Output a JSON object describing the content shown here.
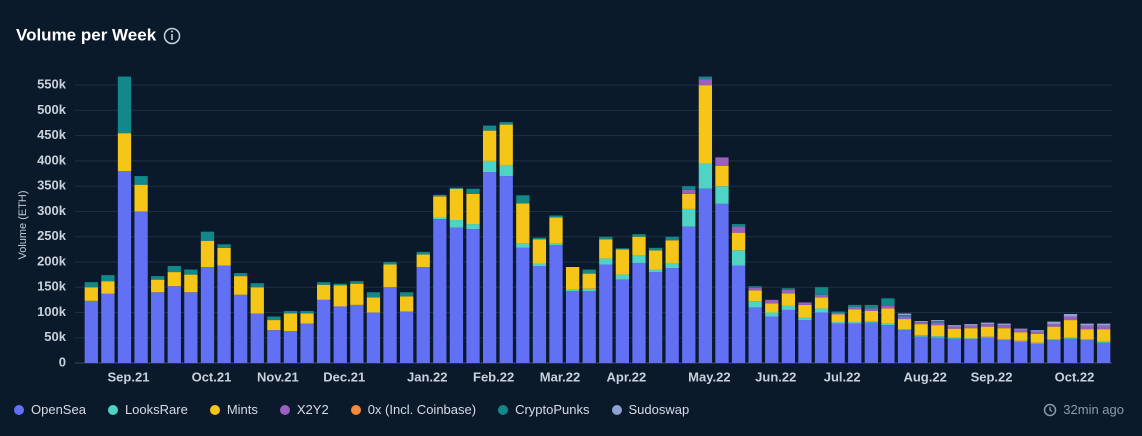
{
  "chart_data": {
    "type": "stacked-bar",
    "title": "Volume per Week",
    "y_label": "Volume (ETH)",
    "updated": "32min ago",
    "categories": [
      null,
      null,
      "Sep.21",
      null,
      null,
      null,
      null,
      "Oct.21",
      null,
      null,
      null,
      "Nov.21",
      null,
      null,
      null,
      "Dec.21",
      null,
      null,
      null,
      null,
      "Jan.22",
      null,
      null,
      null,
      "Feb.22",
      null,
      null,
      null,
      "Mar.22",
      null,
      null,
      null,
      "Apr.22",
      null,
      null,
      null,
      null,
      "May.22",
      null,
      null,
      null,
      "Jun.22",
      null,
      null,
      null,
      "Jul.22",
      null,
      null,
      null,
      null,
      "Aug.22",
      null,
      null,
      null,
      "Sep.22",
      null,
      null,
      null,
      null,
      "Oct.22",
      null,
      null
    ],
    "series": [
      {
        "name": "OpenSea",
        "color": "#6270f4",
        "values": [
          123000,
          137000,
          380000,
          300000,
          140000,
          152000,
          140000,
          190000,
          193000,
          135000,
          98000,
          65000,
          63000,
          78000,
          125000,
          112000,
          115000,
          100000,
          150000,
          102000,
          190000,
          285000,
          268000,
          265000,
          378000,
          370000,
          228000,
          192000,
          233000,
          142000,
          142000,
          195000,
          165000,
          198000,
          180000,
          188000,
          270000,
          345000,
          315000,
          193000,
          110000,
          92000,
          105000,
          85000,
          100000,
          78000,
          78000,
          80000,
          75000,
          65000,
          52000,
          50000,
          48000,
          47000,
          50000,
          45000,
          42000,
          38000,
          45000,
          48000,
          45000,
          40000
        ]
      },
      {
        "name": "LooksRare",
        "color": "#4fd3c4",
        "values": [
          0,
          0,
          0,
          0,
          0,
          0,
          0,
          0,
          0,
          0,
          0,
          0,
          0,
          0,
          0,
          0,
          0,
          0,
          0,
          0,
          0,
          3000,
          15000,
          10000,
          22000,
          22000,
          8000,
          5000,
          3000,
          3000,
          5000,
          12000,
          10000,
          15000,
          5000,
          10000,
          35000,
          50000,
          35000,
          30000,
          12000,
          8000,
          8000,
          5000,
          8000,
          3000,
          3000,
          3000,
          3000,
          2000,
          3000,
          3000,
          2000,
          2000,
          2000,
          2000,
          2000,
          2000,
          2000,
          2000,
          2000,
          2000
        ]
      },
      {
        "name": "Mints",
        "color": "#f5c518",
        "values": [
          27000,
          25000,
          75000,
          53000,
          25000,
          28000,
          35000,
          52000,
          35000,
          37000,
          52000,
          20000,
          35000,
          20000,
          30000,
          42000,
          42000,
          30000,
          45000,
          30000,
          25000,
          42000,
          62000,
          60000,
          60000,
          80000,
          80000,
          48000,
          52000,
          45000,
          30000,
          38000,
          50000,
          37000,
          38000,
          45000,
          30000,
          155000,
          40000,
          35000,
          22000,
          18000,
          25000,
          25000,
          22000,
          15000,
          25000,
          20000,
          30000,
          20000,
          22000,
          22000,
          18000,
          20000,
          20000,
          22000,
          17000,
          18000,
          25000,
          35000,
          20000,
          25000
        ]
      },
      {
        "name": "X2Y2",
        "color": "#9b5fc0",
        "values": [
          0,
          0,
          0,
          0,
          0,
          0,
          0,
          0,
          0,
          0,
          0,
          0,
          0,
          0,
          0,
          0,
          0,
          0,
          0,
          0,
          0,
          0,
          0,
          0,
          0,
          0,
          0,
          0,
          0,
          0,
          0,
          0,
          0,
          0,
          0,
          0,
          8000,
          12000,
          17000,
          12000,
          5000,
          7000,
          7000,
          5000,
          5000,
          3000,
          5000,
          5000,
          5000,
          5000,
          4000,
          5000,
          4000,
          5000,
          5000,
          6000,
          5000,
          4000,
          5000,
          7000,
          7000,
          7000
        ]
      },
      {
        "name": "0x (Incl. Coinbase)",
        "color": "#f58a3c",
        "values": [
          0,
          0,
          0,
          0,
          0,
          0,
          0,
          0,
          0,
          0,
          0,
          0,
          0,
          0,
          0,
          0,
          0,
          0,
          0,
          0,
          0,
          0,
          0,
          0,
          0,
          0,
          0,
          0,
          0,
          0,
          0,
          0,
          0,
          0,
          0,
          0,
          0,
          0,
          0,
          0,
          0,
          0,
          0,
          0,
          0,
          0,
          0,
          0,
          0,
          0,
          0,
          0,
          0,
          0,
          0,
          0,
          0,
          0,
          0,
          0,
          0,
          0
        ]
      },
      {
        "name": "CryptoPunks",
        "color": "#13888a",
        "values": [
          10000,
          12000,
          112000,
          17000,
          7000,
          12000,
          10000,
          18000,
          7000,
          6000,
          8000,
          7000,
          5000,
          5000,
          5000,
          3000,
          5000,
          10000,
          5000,
          8000,
          5000,
          3000,
          2000,
          10000,
          10000,
          5000,
          16000,
          3000,
          4000,
          0,
          8000,
          5000,
          2000,
          5000,
          5000,
          7000,
          7000,
          5000,
          0,
          5000,
          3000,
          0,
          3000,
          0,
          15000,
          3000,
          4000,
          7000,
          15000,
          3000,
          0,
          3000,
          0,
          0,
          0,
          0,
          0,
          0,
          0,
          0,
          0,
          0
        ]
      },
      {
        "name": "Sudoswap",
        "color": "#8fa2cf",
        "values": [
          0,
          0,
          0,
          0,
          0,
          0,
          0,
          0,
          0,
          0,
          0,
          0,
          0,
          0,
          0,
          0,
          0,
          0,
          0,
          0,
          0,
          0,
          0,
          0,
          0,
          0,
          0,
          0,
          0,
          0,
          0,
          0,
          0,
          0,
          0,
          0,
          0,
          0,
          0,
          0,
          0,
          0,
          0,
          0,
          0,
          0,
          0,
          0,
          0,
          3000,
          2000,
          2000,
          3000,
          3000,
          3000,
          3000,
          2000,
          3000,
          5000,
          5000,
          4000,
          4000
        ]
      }
    ],
    "ylim": [
      0,
      580000
    ],
    "yticks": [
      0,
      {
        "value": 50000,
        "label": "50k"
      },
      {
        "value": 100000,
        "label": "100k"
      },
      {
        "value": 150000,
        "label": "150k"
      },
      {
        "value": 200000,
        "label": "200k"
      },
      {
        "value": 250000,
        "label": "250k"
      },
      {
        "value": 300000,
        "label": "300k"
      },
      {
        "value": 350000,
        "label": "350k"
      },
      {
        "value": 400000,
        "label": "400k"
      },
      {
        "value": 450000,
        "label": "450k"
      },
      {
        "value": 500000,
        "label": "500k"
      },
      {
        "value": 550000,
        "label": "550k"
      }
    ],
    "grid": true
  }
}
